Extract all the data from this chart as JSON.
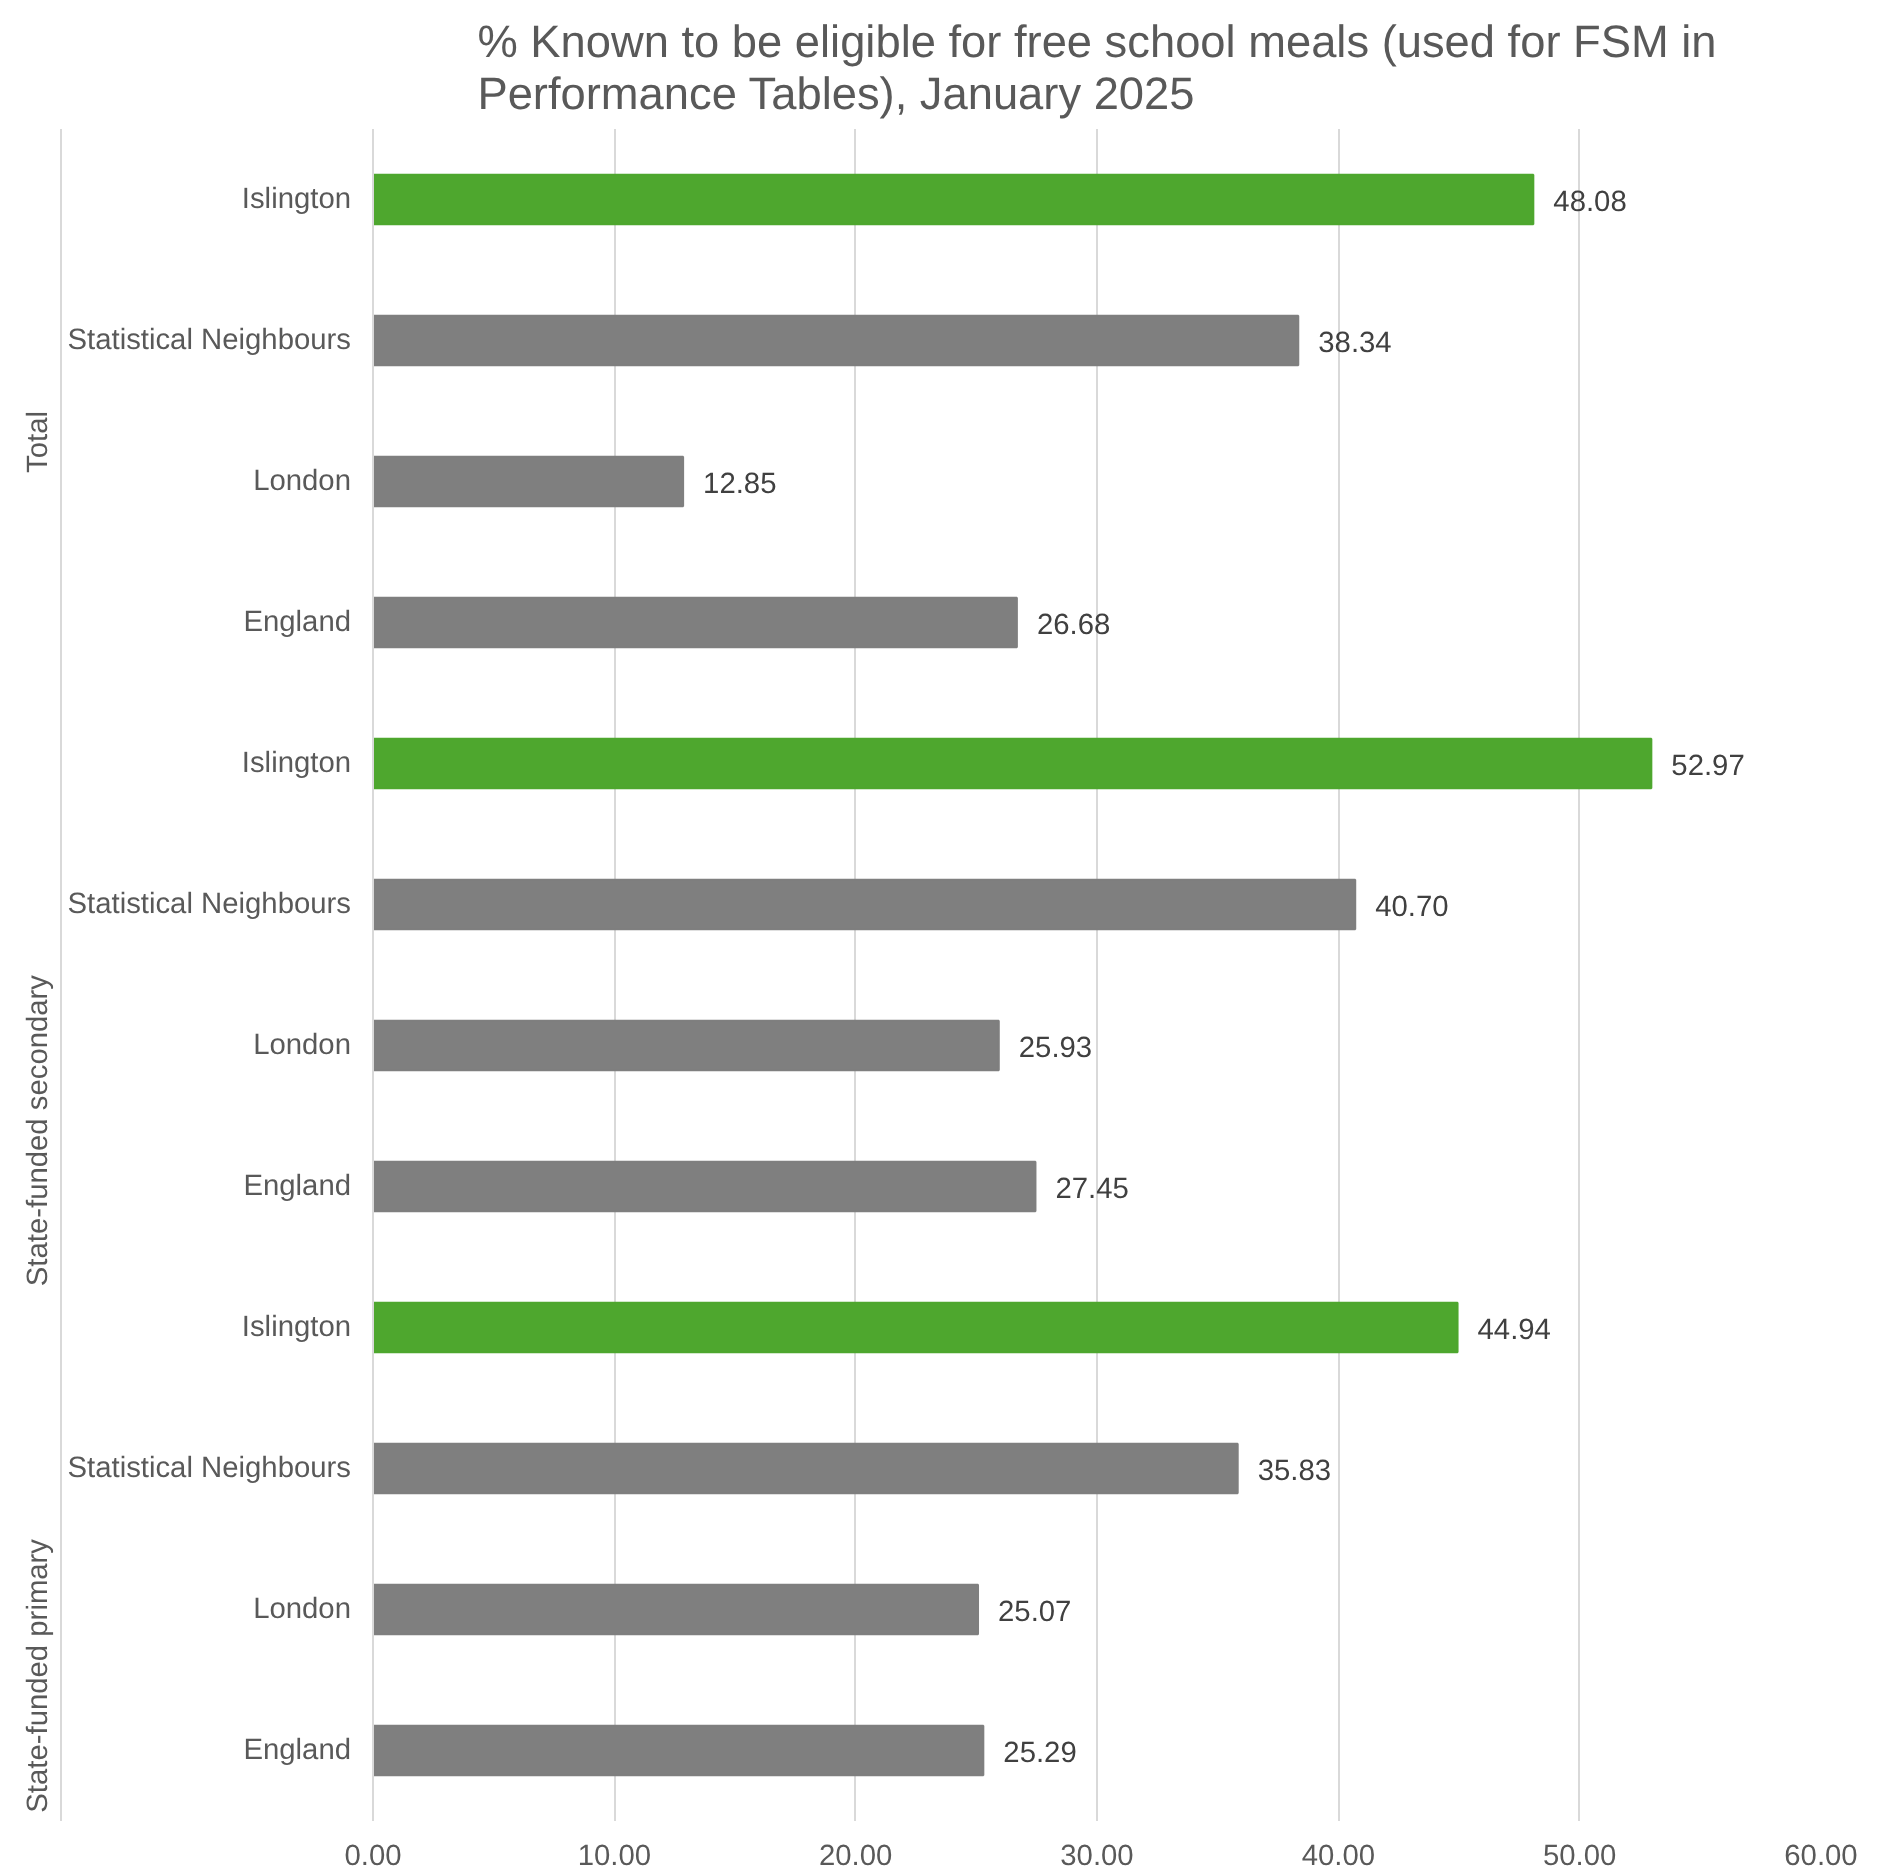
{
  "chart_data": {
    "type": "bar",
    "orientation": "horizontal",
    "title": "% Known to be eligible for free school meals (used for FSM in Performance Tables), January 2025",
    "categories": [
      "Islington",
      "Statistical Neighbours",
      "London",
      "England",
      "Islington",
      "Statistical Neighbours",
      "London",
      "England",
      "Islington",
      "Statistical Neighbours",
      "London",
      "England"
    ],
    "values": [
      48.08,
      38.34,
      12.85,
      26.68,
      52.97,
      40.7,
      25.93,
      27.45,
      44.94,
      35.83,
      25.07,
      25.29
    ],
    "value_labels": [
      "48.08",
      "38.34",
      "12.85",
      "26.68",
      "52.97",
      "40.70",
      "25.93",
      "27.45",
      "44.94",
      "35.83",
      "25.07",
      "25.29"
    ],
    "colors": [
      "#4ea72e",
      "#7f7f7f",
      "#7f7f7f",
      "#7f7f7f",
      "#4ea72e",
      "#7f7f7f",
      "#7f7f7f",
      "#7f7f7f",
      "#4ea72e",
      "#7f7f7f",
      "#7f7f7f",
      "#7f7f7f"
    ],
    "annotations": [
      "Total",
      "State-funded secondary",
      "State-funded primary"
    ],
    "xlim": [
      0,
      60
    ],
    "xticks": [
      {
        "value": 0,
        "label": "0.00"
      },
      {
        "value": 10,
        "label": "10.00"
      },
      {
        "value": 20,
        "label": "20.00"
      },
      {
        "value": 30,
        "label": "30.00"
      },
      {
        "value": 40,
        "label": "40.00"
      },
      {
        "value": 50,
        "label": "50.00"
      },
      {
        "value": 60,
        "label": "60.00"
      }
    ],
    "grid": "x"
  }
}
